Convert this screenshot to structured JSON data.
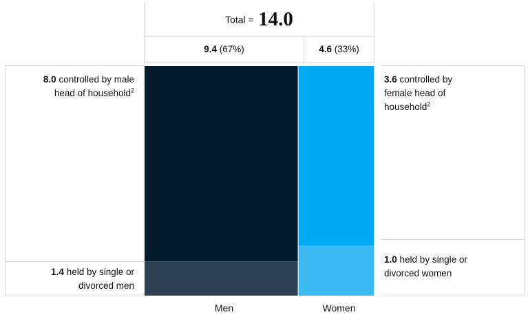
{
  "chart_data": {
    "type": "mekko",
    "total": {
      "label": "Total =",
      "value": "14.0"
    },
    "categories": [
      "Men",
      "Women"
    ],
    "columns": [
      {
        "name": "Men",
        "value_text": "9.4",
        "share_text": "(67%)",
        "value": 9.4,
        "segments": [
          {
            "key": "controlled",
            "value": 8.0,
            "value_text": "8.0",
            "text": " controlled by male head of household",
            "sup": "2",
            "color": "#051c2c"
          },
          {
            "key": "single",
            "value": 1.4,
            "value_text": "1.4",
            "text": " held by single or divorced men",
            "sup": "",
            "color": "#2e3f4f"
          }
        ]
      },
      {
        "name": "Women",
        "value_text": "4.6",
        "share_text": "(33%)",
        "value": 4.6,
        "segments": [
          {
            "key": "controlled",
            "value": 3.6,
            "value_text": "3.6",
            "text": " controlled by female head of household",
            "sup": "2",
            "color": "#00a9f4"
          },
          {
            "key": "single",
            "value": 1.0,
            "value_text": "1.0",
            "text": " held by single or divorced women",
            "sup": "",
            "color": "#3bb9f2"
          }
        ]
      }
    ]
  }
}
